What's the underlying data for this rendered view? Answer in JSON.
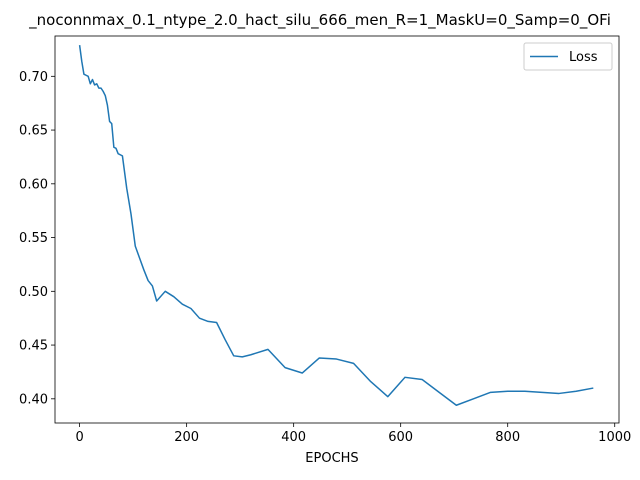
{
  "chart_data": {
    "type": "line",
    "title": "_noconnmax_0.1_ntype_2.0_hact_silu_666_men_R=1_MaskU=0_Samp=0_OFi",
    "xlabel": "EPOCHS",
    "ylabel": "",
    "xlim": [
      -46,
      1008
    ],
    "ylim": [
      0.3775,
      0.7375
    ],
    "xticks": [
      0,
      200,
      400,
      600,
      800,
      1000
    ],
    "yticks": [
      0.4,
      0.45,
      0.5,
      0.55,
      0.6,
      0.65,
      0.7
    ],
    "xtick_labels": [
      "0",
      "200",
      "400",
      "600",
      "800",
      "1000"
    ],
    "ytick_labels": [
      "0.40",
      "0.45",
      "0.50",
      "0.55",
      "0.60",
      "0.65",
      "0.70"
    ],
    "grid": false,
    "legend_position": "top-right",
    "series": [
      {
        "name": "Loss",
        "color": "#1f77b4",
        "x": [
          0,
          4,
          8,
          12,
          16,
          20,
          24,
          28,
          32,
          36,
          40,
          44,
          48,
          52,
          56,
          60,
          64,
          68,
          72,
          80,
          88,
          96,
          104,
          112,
          120,
          128,
          136,
          144,
          160,
          176,
          192,
          208,
          224,
          240,
          256,
          272,
          288,
          304,
          320,
          352,
          384,
          416,
          448,
          480,
          512,
          544,
          576,
          608,
          640,
          672,
          704,
          736,
          768,
          800,
          832,
          864,
          896,
          928,
          960
        ],
        "y": [
          0.729,
          0.714,
          0.702,
          0.701,
          0.7,
          0.693,
          0.697,
          0.692,
          0.693,
          0.689,
          0.689,
          0.686,
          0.682,
          0.673,
          0.658,
          0.656,
          0.634,
          0.633,
          0.628,
          0.626,
          0.596,
          0.572,
          0.542,
          0.531,
          0.52,
          0.51,
          0.505,
          0.491,
          0.5,
          0.495,
          0.488,
          0.484,
          0.475,
          0.472,
          0.471,
          0.455,
          0.44,
          0.439,
          0.441,
          0.446,
          0.429,
          0.424,
          0.438,
          0.437,
          0.433,
          0.416,
          0.402,
          0.42,
          0.418,
          0.406,
          0.394,
          0.4,
          0.406,
          0.407,
          0.407,
          0.406,
          0.405,
          0.407,
          0.41
        ]
      }
    ]
  }
}
